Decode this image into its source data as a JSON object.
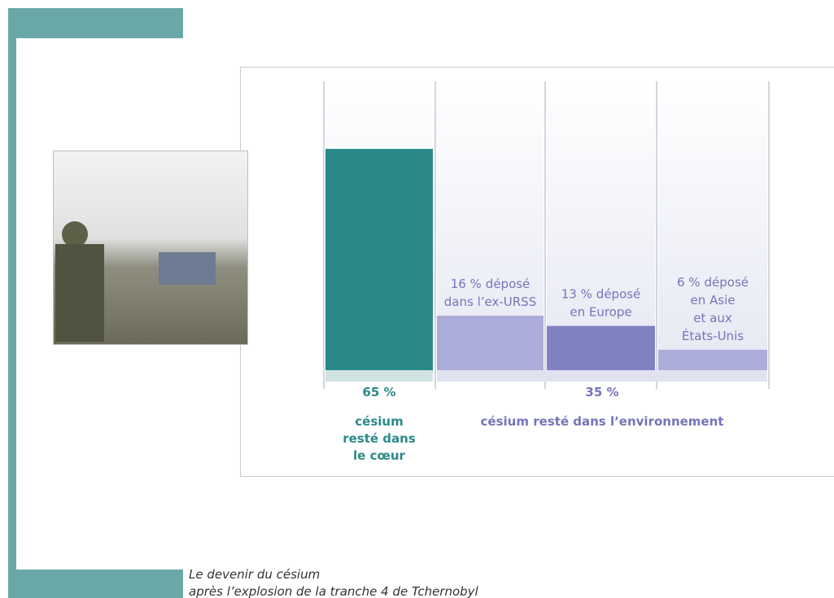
{
  "chart_data": {
    "type": "bar",
    "title": [
      "Le devenir du césium",
      "après l’explosion de la tranche 4 de Tchernobyl"
    ],
    "categories": [
      [
        "césium",
        "resté dans",
        "le cœur"
      ],
      [
        "déposé",
        "dans l’ex-URSS"
      ],
      [
        "déposé",
        "en Europe"
      ],
      [
        "déposé",
        "en Asie",
        "et aux",
        "États-Unis"
      ]
    ],
    "values": [
      65,
      16,
      13,
      6
    ],
    "value_labels": [
      "65 %",
      "16 %",
      "13 %",
      "6 %"
    ],
    "colors": [
      "#2b8a88",
      "#abacd9",
      "#8081c0",
      "#abacd9"
    ],
    "ylim": [
      0,
      65
    ],
    "group": {
      "name": "césium resté dans l’environnement",
      "value": 35,
      "value_label": "35 %",
      "color": "#7475b8"
    }
  }
}
